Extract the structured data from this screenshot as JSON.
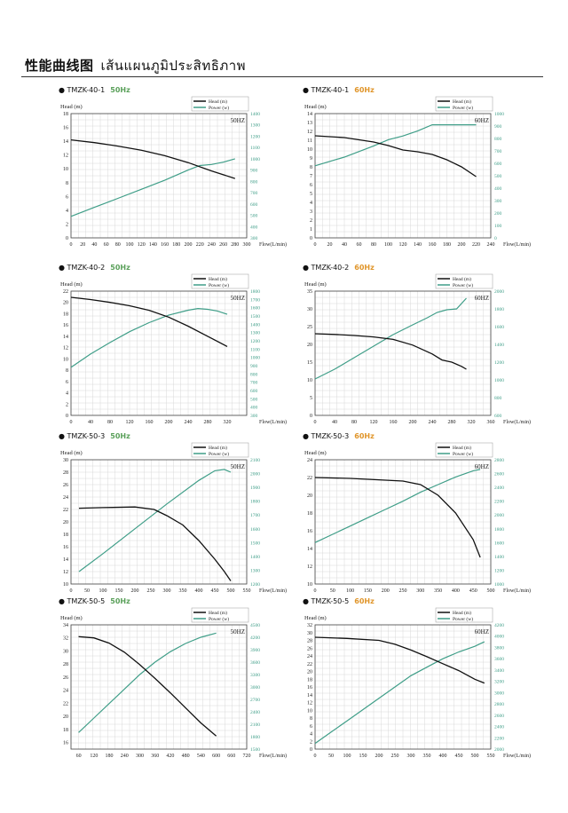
{
  "page": {
    "title": "性能曲线图",
    "title_thai": "เส้นแผนภูมิประสิทธิภาพ",
    "accent_50hz": "#5aa05a",
    "accent_60hz": "#e0952a",
    "head_color": "#111111",
    "power_color": "#3f9e88"
  },
  "chart_data": [
    {
      "type": "line",
      "model": "TMZK-40-1",
      "freq": "50Hz",
      "freq_label": "50HZ",
      "xlabel": "Flow(L/min)",
      "ylabel": "Head (m)",
      "legend": [
        "Head (m)",
        "Power (w)"
      ],
      "xticks": [
        0,
        20,
        40,
        60,
        80,
        100,
        120,
        140,
        160,
        180,
        200,
        220,
        240,
        260,
        280,
        300
      ],
      "xlim": [
        0,
        300
      ],
      "ylim": [
        0,
        18
      ],
      "yticks": [
        0,
        2,
        4,
        6,
        8,
        10,
        12,
        14,
        16,
        18
      ],
      "ylim2": [
        300,
        1400
      ],
      "yticks2": [
        300,
        400,
        500,
        600,
        700,
        800,
        900,
        1000,
        1100,
        1200,
        1300,
        1400
      ],
      "head": {
        "x": [
          0,
          40,
          80,
          120,
          160,
          200,
          240,
          280
        ],
        "y": [
          14.2,
          13.8,
          13.3,
          12.7,
          11.9,
          10.9,
          9.7,
          8.6
        ]
      },
      "power": {
        "x": [
          0,
          40,
          80,
          120,
          160,
          200,
          220,
          240,
          260,
          280
        ],
        "y": [
          490,
          570,
          650,
          730,
          810,
          900,
          940,
          950,
          970,
          1000
        ]
      }
    },
    {
      "type": "line",
      "model": "TMZK-40-1",
      "freq": "60Hz",
      "freq_label": "60HZ",
      "xlabel": "Flow(L/min)",
      "ylabel": "Head (m)",
      "legend": [
        "Head (m)",
        "Power (w)"
      ],
      "xticks": [
        0,
        20,
        40,
        60,
        80,
        100,
        120,
        140,
        160,
        180,
        200,
        220,
        240
      ],
      "xlim": [
        0,
        240
      ],
      "ylim": [
        0,
        14
      ],
      "yticks": [
        0,
        1,
        2,
        3,
        4,
        5,
        6,
        7,
        8,
        9,
        10,
        11,
        12,
        13,
        14
      ],
      "ylim2": [
        0,
        1000
      ],
      "yticks2": [
        0,
        100,
        200,
        300,
        400,
        500,
        600,
        700,
        800,
        900,
        1000
      ],
      "head": {
        "x": [
          0,
          40,
          80,
          100,
          120,
          140,
          160,
          180,
          200,
          220
        ],
        "y": [
          11.5,
          11.3,
          10.8,
          10.4,
          9.9,
          9.7,
          9.4,
          8.8,
          8.0,
          6.9
        ]
      },
      "power": {
        "x": [
          0,
          40,
          80,
          100,
          120,
          140,
          160,
          180,
          200,
          220
        ],
        "y": [
          580,
          650,
          740,
          790,
          820,
          860,
          910,
          910,
          910,
          910
        ]
      }
    },
    {
      "type": "line",
      "model": "TMZK-40-2",
      "freq": "50Hz",
      "freq_label": "50HZ",
      "xlabel": "Flow(L/min)",
      "ylabel": "Head (m)",
      "legend": [
        "Head (m)",
        "Power (w)"
      ],
      "xticks": [
        0,
        40,
        80,
        120,
        160,
        200,
        240,
        280,
        320
      ],
      "xlim": [
        0,
        360
      ],
      "ylim": [
        0,
        22
      ],
      "yticks": [
        0,
        2,
        4,
        6,
        8,
        10,
        12,
        14,
        16,
        18,
        20,
        22
      ],
      "ylim2": [
        300,
        1800
      ],
      "yticks2": [
        300,
        400,
        500,
        600,
        700,
        800,
        900,
        1000,
        1100,
        1200,
        1300,
        1400,
        1500,
        1600,
        1700,
        1800
      ],
      "head": {
        "x": [
          0,
          40,
          80,
          120,
          160,
          200,
          240,
          280,
          320
        ],
        "y": [
          20.9,
          20.5,
          20.0,
          19.4,
          18.6,
          17.4,
          15.8,
          14.0,
          12.2
        ]
      },
      "power": {
        "x": [
          0,
          40,
          80,
          120,
          160,
          200,
          240,
          260,
          280,
          300,
          320
        ],
        "y": [
          880,
          1040,
          1180,
          1310,
          1420,
          1510,
          1570,
          1590,
          1580,
          1560,
          1520
        ]
      }
    },
    {
      "type": "line",
      "model": "TMZK-40-2",
      "freq": "60Hz",
      "freq_label": "60HZ",
      "xlabel": "Flow(L/min)",
      "ylabel": "Head (m)",
      "legend": [
        "Head (m)",
        "Power (w)"
      ],
      "xticks": [
        0,
        40,
        80,
        120,
        160,
        200,
        240,
        280,
        320,
        360
      ],
      "xlim": [
        0,
        360
      ],
      "ylim": [
        0,
        35
      ],
      "yticks": [
        0,
        5,
        10,
        15,
        20,
        25,
        30,
        35
      ],
      "ylim2": [
        600,
        2000
      ],
      "yticks2": [
        600,
        800,
        1000,
        1200,
        1400,
        1600,
        1800,
        2000
      ],
      "head": {
        "x": [
          0,
          40,
          80,
          120,
          160,
          200,
          240,
          260,
          280,
          300,
          310
        ],
        "y": [
          23.0,
          22.8,
          22.5,
          22.1,
          21.4,
          19.8,
          17.3,
          15.6,
          15.0,
          13.8,
          13.0
        ]
      },
      "power": {
        "x": [
          0,
          40,
          80,
          120,
          160,
          200,
          230,
          250,
          270,
          290,
          310
        ],
        "y": [
          1010,
          1120,
          1250,
          1380,
          1510,
          1620,
          1700,
          1760,
          1790,
          1800,
          1920
        ]
      }
    },
    {
      "type": "line",
      "model": "TMZK-50-3",
      "freq": "50Hz",
      "freq_label": "50HZ",
      "xlabel": "Flow(L/min)",
      "ylabel": "Head (m)",
      "legend": [
        "Head (m)",
        "Power (w)"
      ],
      "xticks": [
        0,
        50,
        100,
        150,
        200,
        250,
        300,
        350,
        400,
        450,
        500,
        550
      ],
      "xlim": [
        0,
        550
      ],
      "ylim": [
        10,
        30
      ],
      "yticks": [
        10,
        12,
        14,
        16,
        18,
        20,
        22,
        24,
        26,
        28,
        30
      ],
      "ylim2": [
        1200,
        2100
      ],
      "yticks2": [
        1200,
        1300,
        1400,
        1500,
        1600,
        1700,
        1800,
        1900,
        2000,
        2100
      ],
      "head": {
        "x": [
          25,
          100,
          200,
          260,
          300,
          350,
          400,
          450,
          480,
          500
        ],
        "y": [
          22.2,
          22.3,
          22.4,
          22.0,
          21.0,
          19.5,
          17.0,
          14.0,
          12.0,
          10.5
        ]
      },
      "power": {
        "x": [
          25,
          100,
          200,
          300,
          400,
          450,
          480,
          500
        ],
        "y": [
          1290,
          1420,
          1600,
          1780,
          1950,
          2020,
          2030,
          2010
        ]
      }
    },
    {
      "type": "line",
      "model": "TMZK-50-3",
      "freq": "60Hz",
      "freq_label": "60HZ",
      "xlabel": "Flow(L/min)",
      "ylabel": "Head (m)",
      "legend": [
        "Head (m)",
        "Power (w)"
      ],
      "xticks": [
        0,
        50,
        100,
        150,
        200,
        250,
        300,
        350,
        400,
        450,
        500
      ],
      "xlim": [
        0,
        500
      ],
      "ylim": [
        10,
        24
      ],
      "yticks": [
        10,
        12,
        14,
        16,
        18,
        20,
        22,
        24
      ],
      "ylim2": [
        1000,
        2800
      ],
      "yticks2": [
        1000,
        1200,
        1400,
        1600,
        1800,
        2000,
        2200,
        2400,
        2600,
        2800
      ],
      "head": {
        "x": [
          0,
          100,
          200,
          250,
          300,
          350,
          400,
          450,
          470
        ],
        "y": [
          22.0,
          21.9,
          21.7,
          21.6,
          21.2,
          20.0,
          18.0,
          15.0,
          13.0
        ]
      },
      "power": {
        "x": [
          0,
          50,
          100,
          150,
          200,
          250,
          300,
          350,
          400,
          450,
          470
        ],
        "y": [
          1600,
          1720,
          1840,
          1960,
          2080,
          2200,
          2330,
          2440,
          2550,
          2640,
          2660
        ]
      }
    },
    {
      "type": "line",
      "model": "TMZK-50-5",
      "freq": "50Hz",
      "freq_label": "50HZ",
      "xlabel": "Flow(L/min)",
      "ylabel": "Head (m)",
      "legend": [
        "Head (m)",
        "Power (w)"
      ],
      "xticks": [
        60,
        120,
        180,
        240,
        300,
        360,
        420,
        480,
        540,
        600,
        660,
        720
      ],
      "xlim": [
        30,
        720
      ],
      "ylim": [
        15,
        34
      ],
      "yticks": [
        16,
        18,
        20,
        22,
        24,
        26,
        28,
        30,
        32,
        34
      ],
      "ylim2": [
        1500,
        4500
      ],
      "yticks2": [
        1500,
        1800,
        2100,
        2400,
        2700,
        3000,
        3300,
        3600,
        3900,
        4200,
        4500
      ],
      "head": {
        "x": [
          60,
          120,
          180,
          240,
          300,
          360,
          420,
          480,
          540,
          600
        ],
        "y": [
          32.2,
          32.0,
          31.2,
          29.8,
          27.9,
          25.8,
          23.6,
          21.3,
          19.0,
          17.0
        ]
      },
      "power": {
        "x": [
          60,
          120,
          180,
          240,
          300,
          360,
          420,
          480,
          540,
          600
        ],
        "y": [
          1900,
          2250,
          2600,
          2950,
          3300,
          3600,
          3850,
          4050,
          4200,
          4300
        ]
      }
    },
    {
      "type": "line",
      "model": "TMZK-50-5",
      "freq": "60Hz",
      "freq_label": "60HZ",
      "xlabel": "Flow(L/min)",
      "ylabel": "Head (m)",
      "legend": [
        "Head (m)",
        "Power (w)"
      ],
      "xticks": [
        0,
        50,
        100,
        150,
        200,
        250,
        300,
        350,
        400,
        450,
        500,
        550
      ],
      "xlim": [
        0,
        550
      ],
      "ylim": [
        0,
        32
      ],
      "yticks": [
        0,
        2,
        4,
        6,
        8,
        10,
        12,
        14,
        16,
        18,
        20,
        22,
        24,
        26,
        28,
        30,
        32
      ],
      "ylim2": [
        2000,
        4200
      ],
      "yticks2": [
        2000,
        2200,
        2400,
        2600,
        2800,
        3000,
        3200,
        3400,
        3600,
        3800,
        4000,
        4200
      ],
      "head": {
        "x": [
          0,
          100,
          200,
          250,
          300,
          350,
          400,
          450,
          500,
          530
        ],
        "y": [
          28.8,
          28.5,
          28.0,
          27.0,
          25.5,
          23.8,
          22.0,
          20.2,
          18.0,
          17.0
        ]
      },
      "power": {
        "x": [
          0,
          50,
          100,
          150,
          200,
          250,
          300,
          350,
          400,
          450,
          500,
          530
        ],
        "y": [
          2100,
          2300,
          2500,
          2700,
          2900,
          3100,
          3300,
          3450,
          3600,
          3720,
          3820,
          3900
        ]
      }
    }
  ]
}
